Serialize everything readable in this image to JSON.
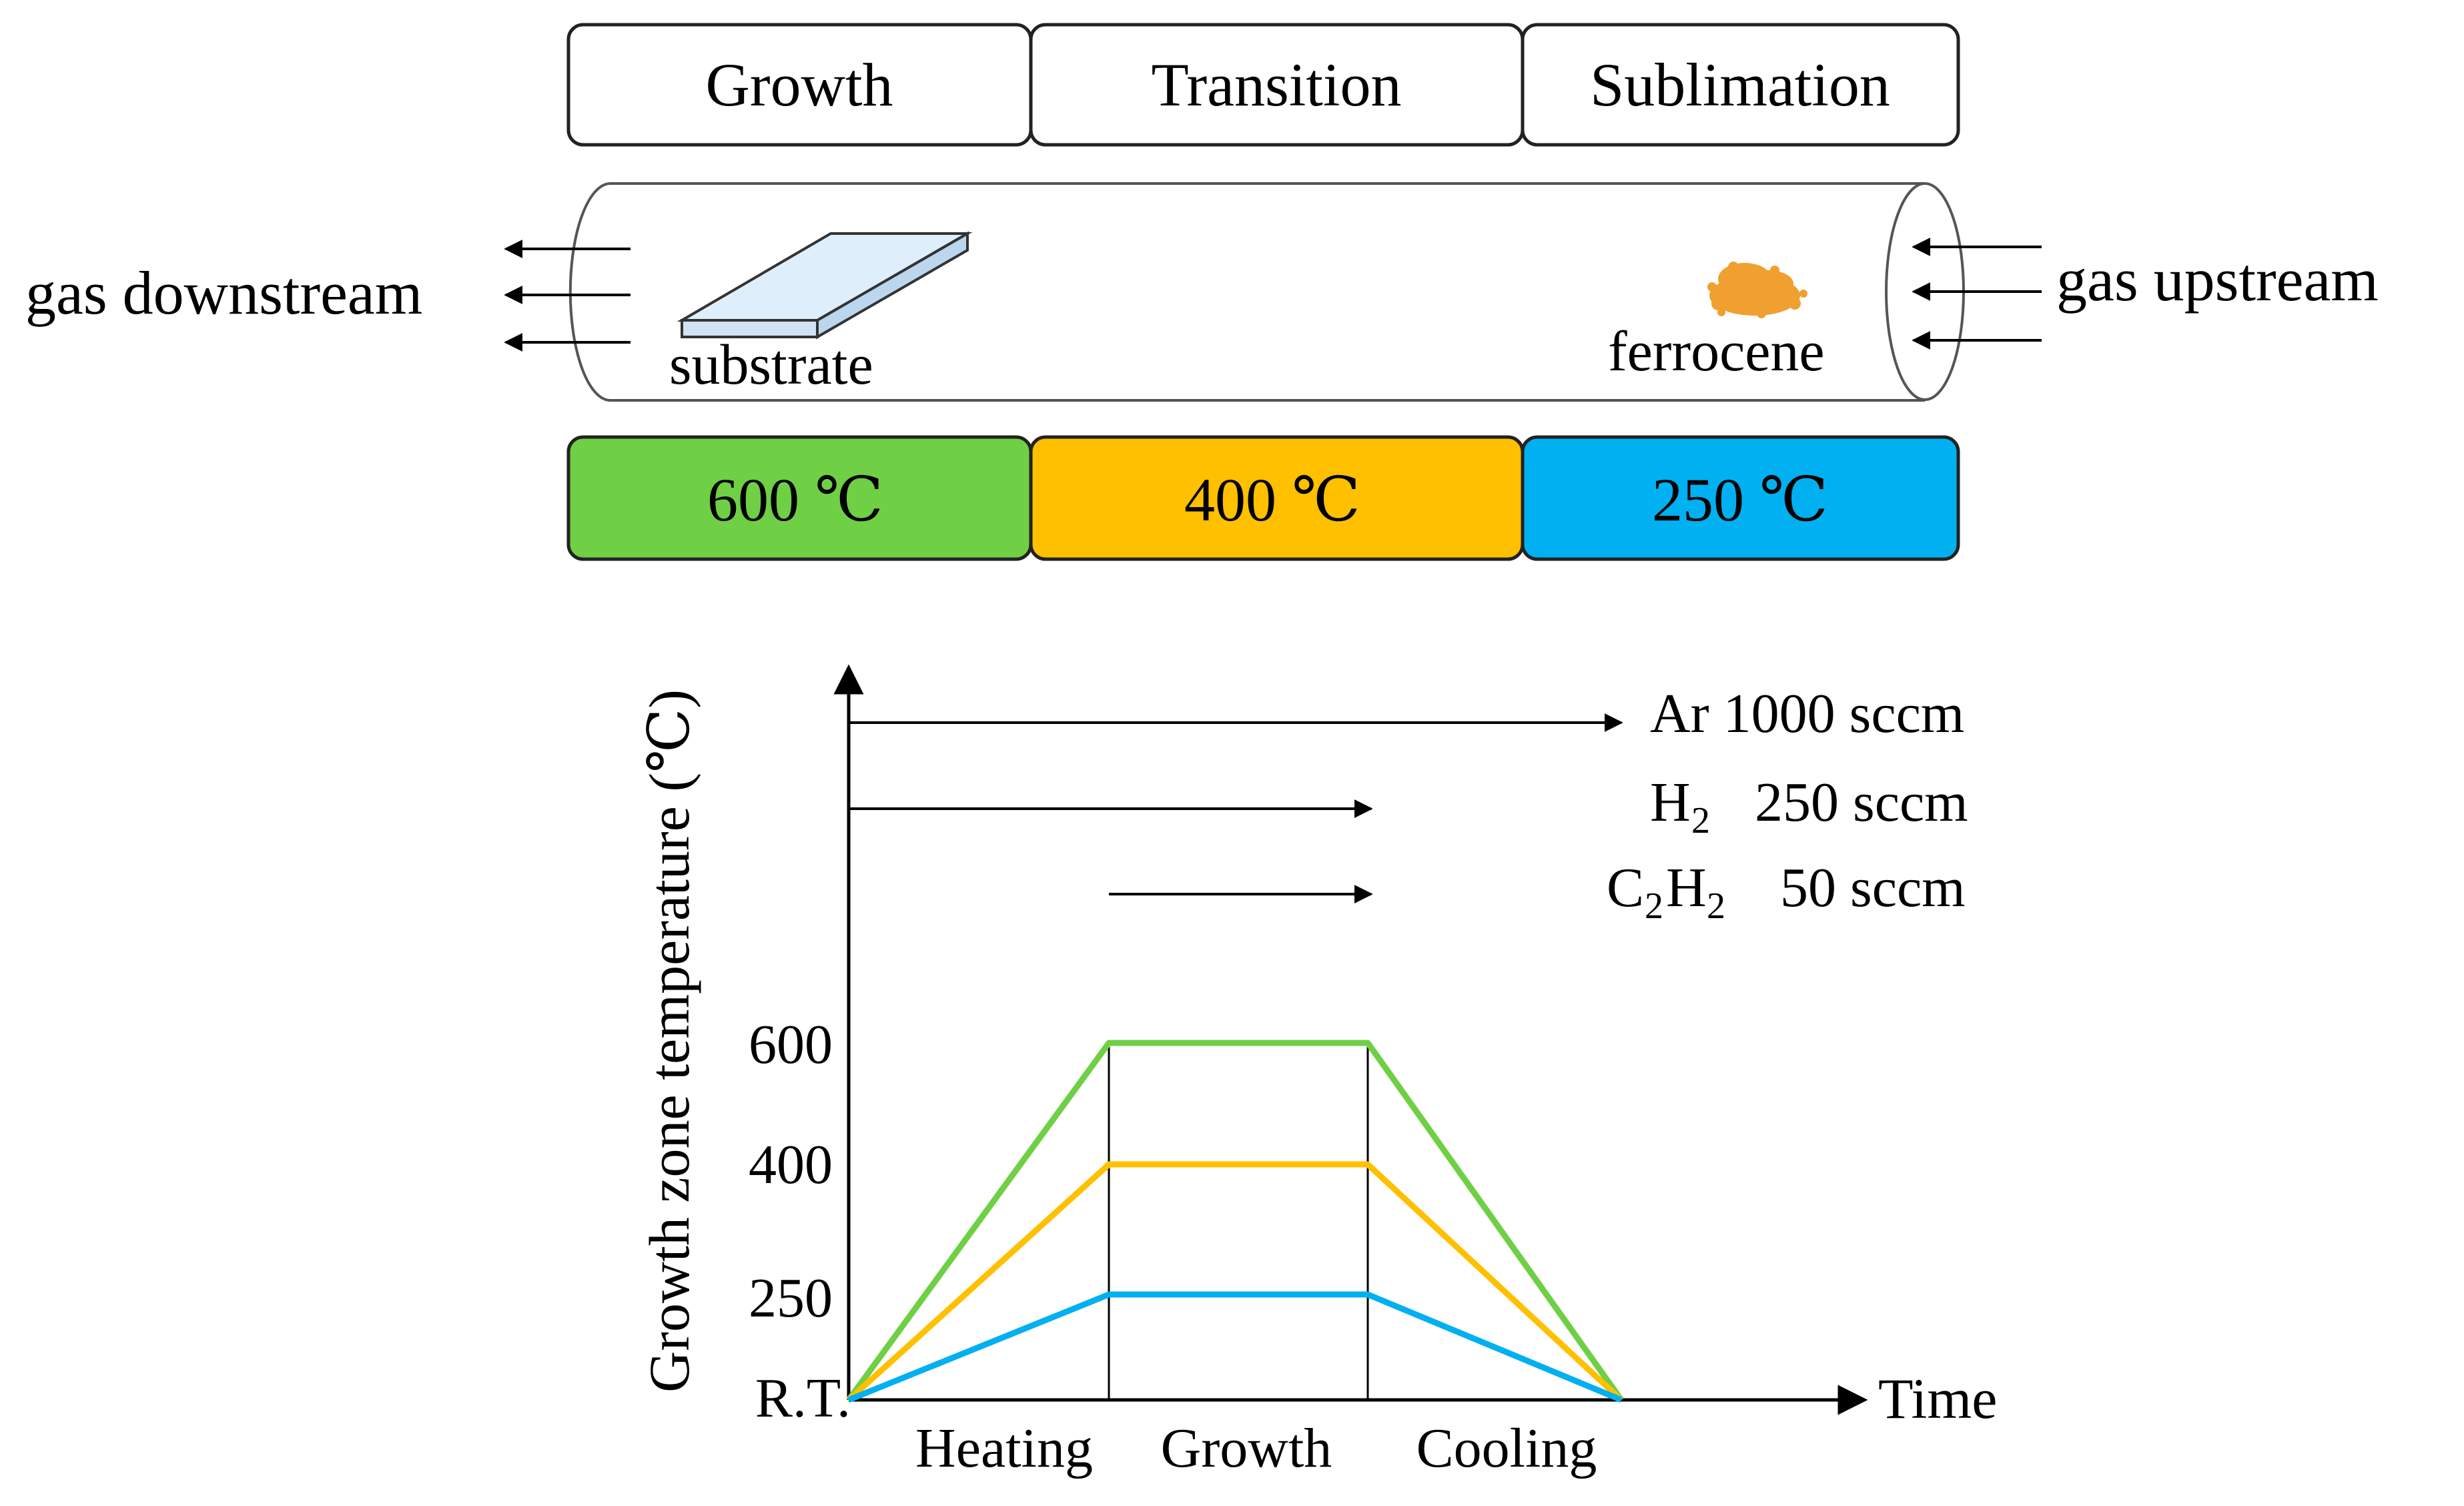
{
  "zones": {
    "labels": [
      "Growth",
      "Transition",
      "Sublimation"
    ],
    "temperatures": [
      "600 ℃",
      "400 ℃",
      "250 ℃"
    ],
    "colors": [
      "#6fcf45",
      "#ffc000",
      "#00b0f0"
    ]
  },
  "tube": {
    "left_label": "gas downstream",
    "right_label": "gas upstream",
    "substrate_label": "substrate",
    "source_label": "ferrocene"
  },
  "chart_data": {
    "type": "line",
    "ylabel": "Growth zone temperature (℃)",
    "xlabel": "Time",
    "y_ticks": [
      "600",
      "400",
      "250",
      "R.T."
    ],
    "phases": [
      "Heating",
      "Growth",
      "Cooling"
    ],
    "series": [
      {
        "name": "600 ℃",
        "color": "#6fcf45",
        "points": [
          [
            "start",
            "R.T."
          ],
          [
            "heating-end",
            600
          ],
          [
            "growth-end",
            600
          ],
          [
            "cooling-end",
            "R.T."
          ]
        ]
      },
      {
        "name": "400 ℃",
        "color": "#ffc000",
        "points": [
          [
            "start",
            "R.T."
          ],
          [
            "heating-end",
            400
          ],
          [
            "growth-end",
            400
          ],
          [
            "cooling-end",
            "R.T."
          ]
        ]
      },
      {
        "name": "250 ℃",
        "color": "#00b0f0",
        "points": [
          [
            "start",
            "R.T."
          ],
          [
            "heating-end",
            250
          ],
          [
            "growth-end",
            250
          ],
          [
            "cooling-end",
            "R.T."
          ]
        ]
      }
    ],
    "gas_flows": [
      {
        "gas": "Ar",
        "flow": "1000 sccm",
        "span": "heating-cooling"
      },
      {
        "gas": "H2",
        "flow": "250 sccm",
        "span": "heating-growth"
      },
      {
        "gas": "C2H2",
        "flow": "50 sccm",
        "span": "growth"
      }
    ]
  },
  "gas_labels": {
    "ar": "Ar 1000 sccm",
    "h2_main": "H",
    "h2_sub": "2",
    "h2_flow": "250 sccm",
    "c2h2_c": "C",
    "c2h2_sub1": "2",
    "c2h2_h": "H",
    "c2h2_sub2": "2",
    "c2h2_flow": "50 sccm"
  }
}
